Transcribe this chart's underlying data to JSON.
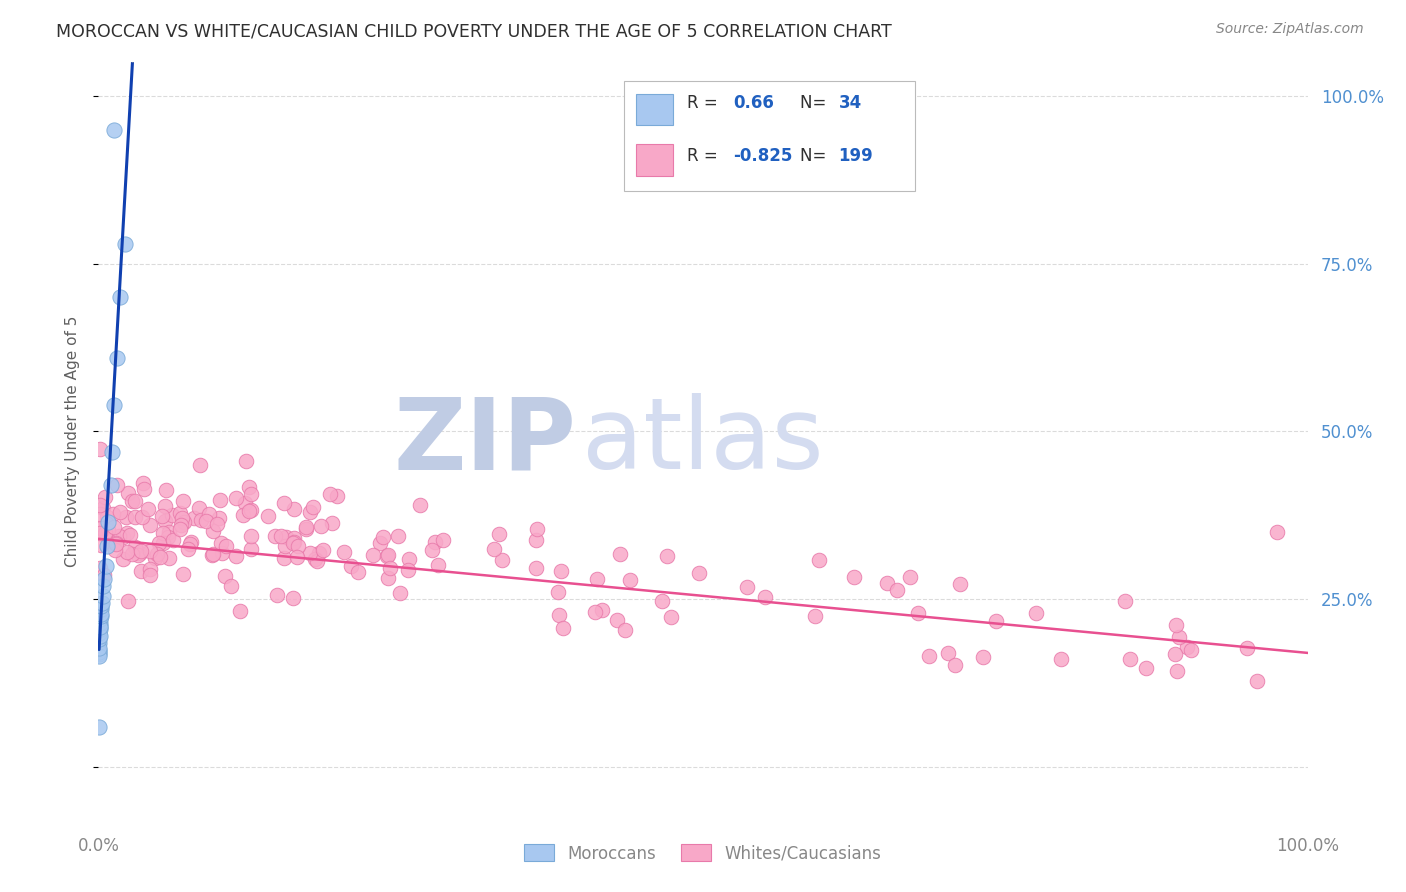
{
  "title": "MOROCCAN VS WHITE/CAUCASIAN CHILD POVERTY UNDER THE AGE OF 5 CORRELATION CHART",
  "source": "Source: ZipAtlas.com",
  "ylabel": "Child Poverty Under the Age of 5",
  "xlim": [
    0.0,
    1.0
  ],
  "ylim": [
    -0.08,
    1.05
  ],
  "moroccan_R": 0.66,
  "moroccan_N": 34,
  "white_R": -0.825,
  "white_N": 199,
  "moroccan_dot_fill": "#A8C8F0",
  "moroccan_dot_edge": "#7AAAD8",
  "white_dot_fill": "#F8A8C8",
  "white_dot_edge": "#E87AAA",
  "trend_moroccan_color": "#1040B0",
  "trend_white_color": "#E85090",
  "background_color": "#FFFFFF",
  "grid_color": "#CCCCCC",
  "title_color": "#303030",
  "ylabel_color": "#606060",
  "right_tick_color": "#5090D0",
  "legend_text_color": "#2060C0",
  "legend_N_color": "#303030"
}
